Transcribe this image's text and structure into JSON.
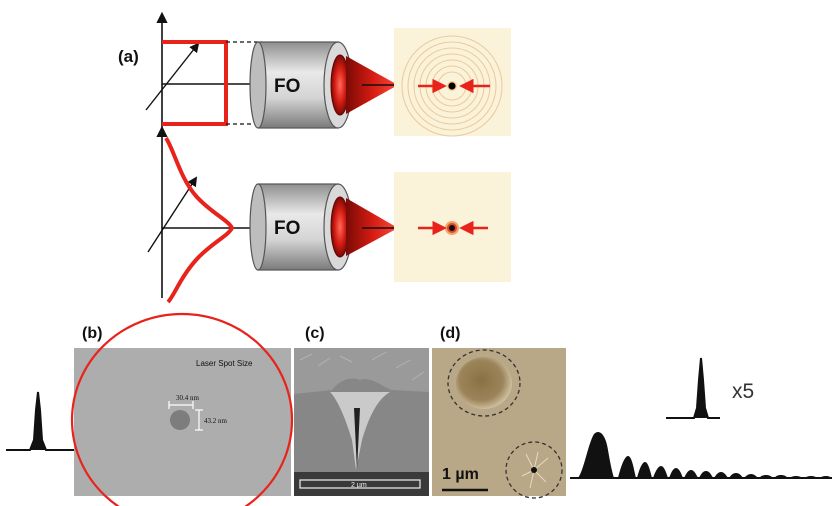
{
  "panel_labels": {
    "a": "(a)",
    "b": "(b)",
    "c": "(c)",
    "d": "(d)"
  },
  "objective_label": "FO",
  "panel_b": {
    "spot_label": "Laser Spot Size",
    "width_label": "30.4 nm",
    "height_label": "43.2 nm"
  },
  "panel_c": {
    "scale_label": "2 µm"
  },
  "panel_d": {
    "scale_label": "1 µm"
  },
  "magnification_label": "x5",
  "colors": {
    "beam_red": "#e8231b",
    "objective_gray": "#c9c9c9",
    "spot_bg": "#fbf3d9",
    "sem_gray": "#a9a9a9",
    "micrograph_tan": "#b9a887"
  }
}
